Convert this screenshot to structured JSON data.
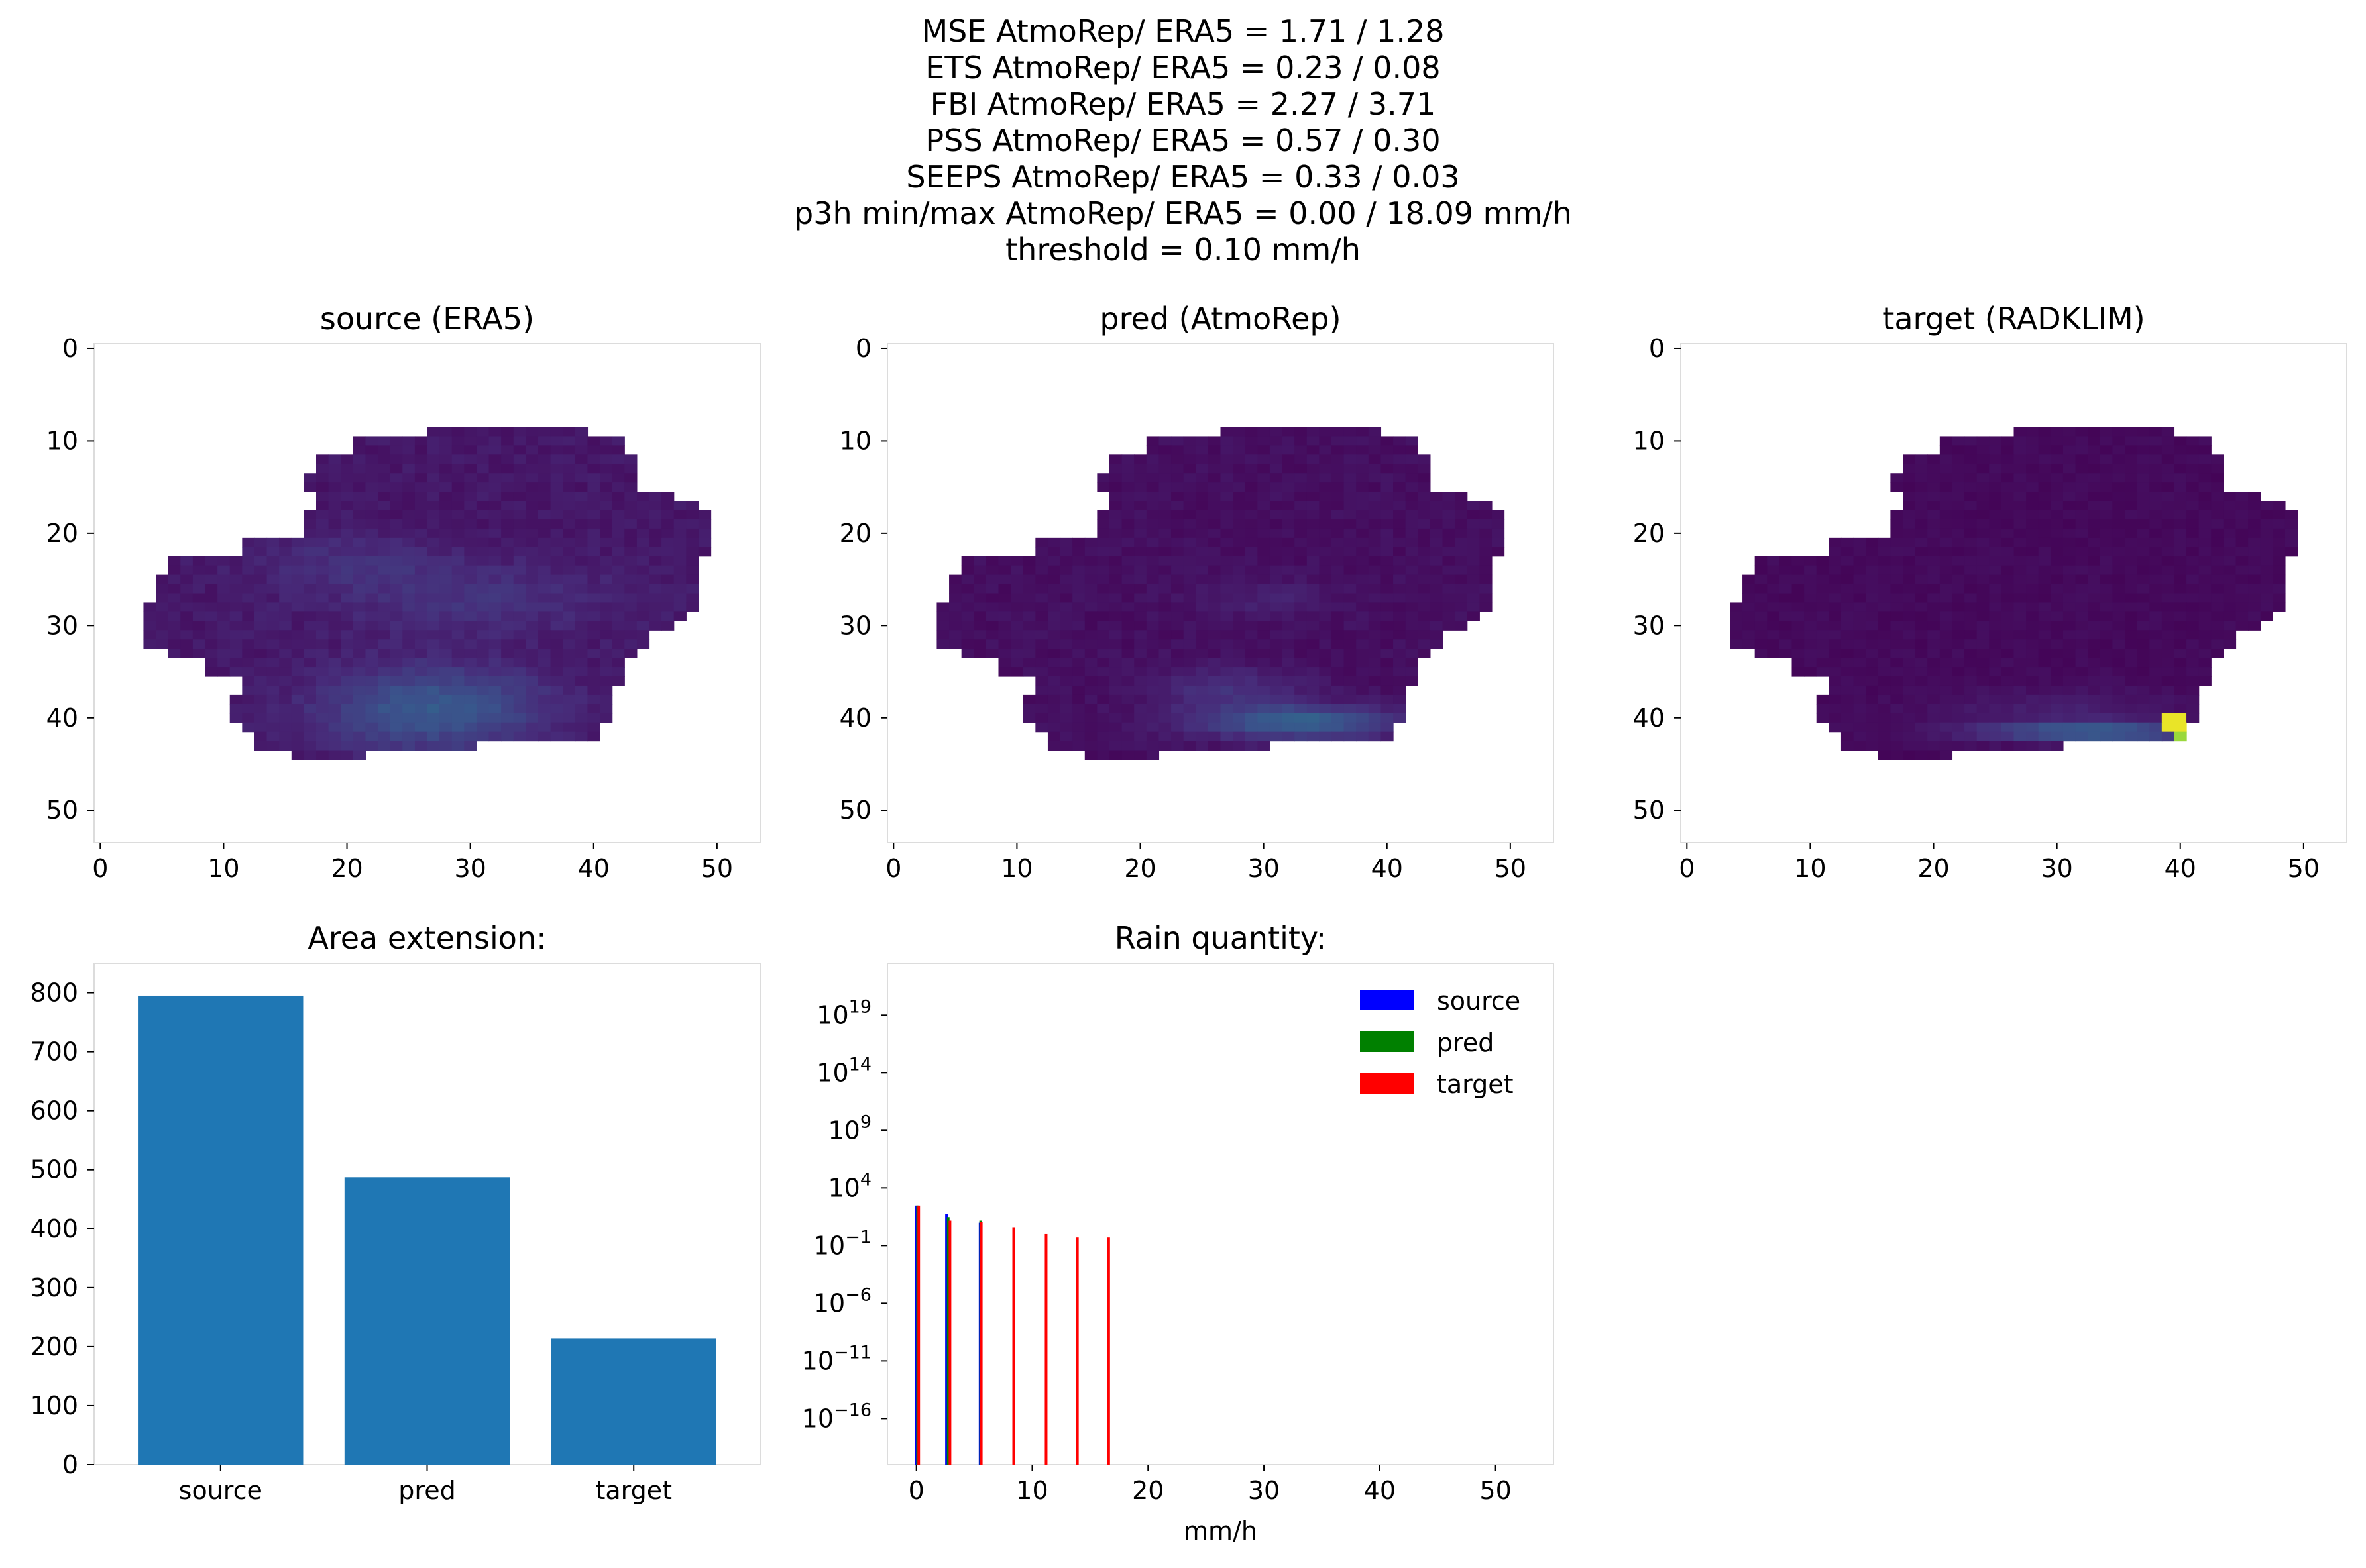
{
  "suptitle_lines": [
    "MSE AtmoRep/ ERA5 = 1.71 / 1.28",
    "ETS AtmoRep/ ERA5 = 0.23 / 0.08",
    "FBI AtmoRep/ ERA5 = 2.27 / 3.71",
    "PSS AtmoRep/ ERA5 = 0.57 / 0.30",
    "SEEPS AtmoRep/ ERA5 = 0.33 / 0.03",
    "p3h min/max AtmoRep/ ERA5 = 0.00 / 18.09 mm/h",
    "threshold = 0.10 mm/h"
  ],
  "chart_data": [
    {
      "type": "heatmap",
      "title": "source (ERA5)",
      "colormap": "viridis",
      "xticks": [
        0,
        10,
        20,
        30,
        40,
        50
      ],
      "yticks": [
        0,
        10,
        20,
        30,
        40,
        50
      ],
      "xlim": [
        -0.5,
        53.5
      ],
      "ylim": [
        53.5,
        -0.5
      ],
      "grid_rows": 54,
      "grid_cols": 54
    },
    {
      "type": "heatmap",
      "title": "pred (AtmoRep)",
      "colormap": "viridis",
      "xticks": [
        0,
        10,
        20,
        30,
        40,
        50
      ],
      "yticks": [
        0,
        10,
        20,
        30,
        40,
        50
      ],
      "xlim": [
        -0.5,
        53.5
      ],
      "ylim": [
        53.5,
        -0.5
      ],
      "grid_rows": 54,
      "grid_cols": 54
    },
    {
      "type": "heatmap",
      "title": "target (RADKLIM)",
      "colormap": "viridis",
      "xticks": [
        0,
        10,
        20,
        30,
        40,
        50
      ],
      "yticks": [
        0,
        10,
        20,
        30,
        40,
        50
      ],
      "xlim": [
        -0.5,
        53.5
      ],
      "ylim": [
        53.5,
        -0.5
      ],
      "grid_rows": 54,
      "grid_cols": 54
    },
    {
      "type": "bar",
      "title": "Area extension:",
      "categories": [
        "source",
        "pred",
        "target"
      ],
      "values": [
        795,
        487,
        214
      ],
      "ylim": [
        0,
        850
      ],
      "yticks": [
        0,
        100,
        200,
        300,
        400,
        500,
        600,
        700,
        800
      ],
      "color": "#1f77b4"
    },
    {
      "type": "bar",
      "title": "Rain quantity:",
      "xlabel": "mm/h",
      "yscale": "log",
      "xlim": [
        -2.5,
        55
      ],
      "ylog_range": [
        -20,
        23.5
      ],
      "xticks": [
        0,
        10,
        20,
        30,
        40,
        50
      ],
      "ytick_exponents": [
        19,
        14,
        9,
        4,
        -1,
        -6,
        -11,
        -16
      ],
      "legend_location": "upper right",
      "series": [
        {
          "name": "source",
          "color": "#0000ff",
          "bars": [
            {
              "x": 0,
              "y": 300
            },
            {
              "x": 2.6,
              "y": 60
            },
            {
              "x": 5.5,
              "y": 10
            }
          ]
        },
        {
          "name": "pred",
          "color": "#008000",
          "bars": [
            {
              "x": 0.1,
              "y": 300
            },
            {
              "x": 2.75,
              "y": 30
            },
            {
              "x": 5.55,
              "y": 15
            }
          ]
        },
        {
          "name": "target",
          "color": "#ff0000",
          "bars": [
            {
              "x": 0.2,
              "y": 300
            },
            {
              "x": 2.9,
              "y": 15
            },
            {
              "x": 5.6,
              "y": 12
            },
            {
              "x": 8.4,
              "y": 4
            },
            {
              "x": 11.2,
              "y": 1
            },
            {
              "x": 13.9,
              "y": 0.5
            },
            {
              "x": 16.6,
              "y": 0.5
            }
          ]
        }
      ]
    }
  ]
}
